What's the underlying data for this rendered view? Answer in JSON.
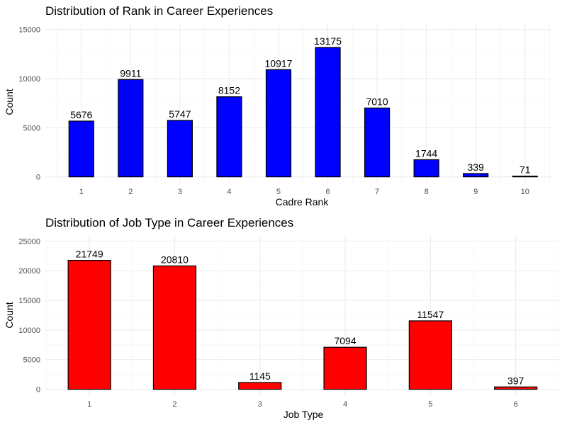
{
  "chart_data": [
    {
      "type": "bar",
      "title": "Distribution of Rank in Career Experiences",
      "xlabel": "Cadre Rank",
      "ylabel": "Count",
      "categories": [
        "1",
        "2",
        "3",
        "4",
        "5",
        "6",
        "7",
        "8",
        "9",
        "10"
      ],
      "values": [
        5676,
        9911,
        5747,
        8152,
        10917,
        13175,
        7010,
        1744,
        339,
        71
      ],
      "data_labels": [
        "5676",
        "9911",
        "5747",
        "8152",
        "10917",
        "13175",
        "7010",
        "1744",
        "339",
        "71"
      ],
      "yticks": [
        0,
        5000,
        10000,
        15000
      ],
      "ytick_labels": [
        "0",
        "5000",
        "10000",
        "15000"
      ],
      "ylim": [
        0,
        15000
      ],
      "grid": true,
      "bar_color": "#0000ff",
      "edge_color": "#000000"
    },
    {
      "type": "bar",
      "title": "Distribution of Job Type in Career Experiences",
      "xlabel": "Job Type",
      "ylabel": "Count",
      "categories": [
        "1",
        "2",
        "3",
        "4",
        "5",
        "6"
      ],
      "values": [
        21749,
        20810,
        1145,
        7094,
        11547,
        397
      ],
      "data_labels": [
        "21749",
        "20810",
        "1145",
        "7094",
        "11547",
        "397"
      ],
      "yticks": [
        0,
        5000,
        10000,
        15000,
        20000,
        25000
      ],
      "ytick_labels": [
        "0",
        "5000",
        "10000",
        "15000",
        "20000",
        "25000"
      ],
      "ylim": [
        0,
        25000
      ],
      "grid": true,
      "bar_color": "#ff0000",
      "edge_color": "#000000"
    }
  ]
}
